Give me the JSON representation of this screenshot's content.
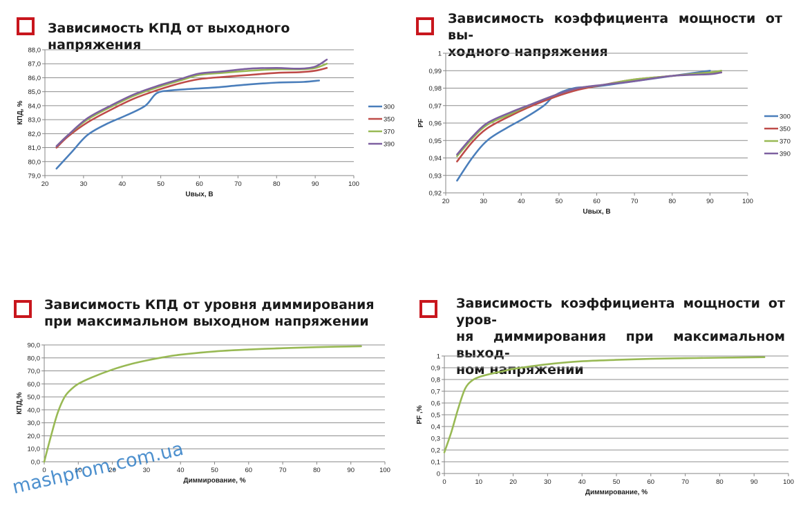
{
  "panels": [
    {
      "title": "Зависимость КПД от выходного напряжения",
      "chart_data": {
        "type": "line",
        "xlabel": "Uвых, В",
        "ylabel": "КПД, %",
        "xlim": [
          20,
          100
        ],
        "ylim": [
          79.0,
          88.0
        ],
        "x_ticks": [
          "20",
          "30",
          "40",
          "50",
          "60",
          "70",
          "80",
          "90",
          "100"
        ],
        "y_ticks": [
          "79,0",
          "80,0",
          "81,0",
          "82,0",
          "83,0",
          "84,0",
          "85,0",
          "86,0",
          "87,0",
          "88,0"
        ],
        "grid": true,
        "legend": "right",
        "series": [
          {
            "name": "300",
            "color": "#4a7ebb",
            "points": [
              [
                23,
                79.5
              ],
              [
                27,
                80.7
              ],
              [
                31,
                81.9
              ],
              [
                36,
                82.7
              ],
              [
                41,
                83.3
              ],
              [
                46,
                84.0
              ],
              [
                49,
                84.9
              ],
              [
                53,
                85.1
              ],
              [
                58,
                85.2
              ],
              [
                64,
                85.3
              ],
              [
                72,
                85.5
              ],
              [
                80,
                85.65
              ],
              [
                87,
                85.7
              ],
              [
                91,
                85.8
              ]
            ]
          },
          {
            "name": "350",
            "color": "#be4b48",
            "points": [
              [
                23,
                81.0
              ],
              [
                26,
                81.8
              ],
              [
                31,
                82.8
              ],
              [
                37,
                83.7
              ],
              [
                43,
                84.5
              ],
              [
                49,
                85.1
              ],
              [
                55,
                85.6
              ],
              [
                60,
                85.9
              ],
              [
                66,
                86.05
              ],
              [
                73,
                86.2
              ],
              [
                80,
                86.35
              ],
              [
                86,
                86.4
              ],
              [
                90,
                86.5
              ],
              [
                93,
                86.7
              ]
            ]
          },
          {
            "name": "370",
            "color": "#98b954",
            "points": [
              [
                23,
                81.1
              ],
              [
                26,
                81.9
              ],
              [
                31,
                83.0
              ],
              [
                37,
                83.9
              ],
              [
                43,
                84.7
              ],
              [
                49,
                85.3
              ],
              [
                55,
                85.8
              ],
              [
                60,
                86.2
              ],
              [
                66,
                86.35
              ],
              [
                73,
                86.5
              ],
              [
                80,
                86.6
              ],
              [
                86,
                86.6
              ],
              [
                90,
                86.7
              ],
              [
                93,
                87.0
              ]
            ]
          },
          {
            "name": "390",
            "color": "#7d60a0",
            "points": [
              [
                23,
                81.1
              ],
              [
                26,
                81.9
              ],
              [
                31,
                83.1
              ],
              [
                37,
                84.0
              ],
              [
                43,
                84.8
              ],
              [
                49,
                85.4
              ],
              [
                55,
                85.9
              ],
              [
                60,
                86.3
              ],
              [
                66,
                86.45
              ],
              [
                73,
                86.65
              ],
              [
                80,
                86.7
              ],
              [
                86,
                86.65
              ],
              [
                90,
                86.8
              ],
              [
                93,
                87.3
              ]
            ]
          }
        ]
      }
    },
    {
      "title": "Зависимость  коэффициента  мощности  от  вы-\nходного напряжения",
      "chart_data": {
        "type": "line",
        "xlabel": "Uвых, В",
        "ylabel": "PF",
        "xlim": [
          20,
          100
        ],
        "ylim": [
          0.92,
          1.0
        ],
        "x_ticks": [
          "20",
          "30",
          "40",
          "50",
          "60",
          "70",
          "80",
          "90",
          "100"
        ],
        "y_ticks": [
          "0,92",
          "0,93",
          "0,94",
          "0,95",
          "0,96",
          "0,97",
          "0,98",
          "0,99",
          "1"
        ],
        "grid": true,
        "legend": "right",
        "series": [
          {
            "name": "300",
            "color": "#4a7ebb",
            "points": [
              [
                23,
                0.927
              ],
              [
                27,
                0.94
              ],
              [
                31,
                0.95
              ],
              [
                36,
                0.957
              ],
              [
                41,
                0.963
              ],
              [
                46,
                0.97
              ],
              [
                49,
                0.976
              ],
              [
                54,
                0.98
              ],
              [
                60,
                0.981
              ],
              [
                70,
                0.984
              ],
              [
                80,
                0.987
              ],
              [
                90,
                0.99
              ]
            ]
          },
          {
            "name": "350",
            "color": "#be4b48",
            "points": [
              [
                23,
                0.938
              ],
              [
                27,
                0.949
              ],
              [
                31,
                0.957
              ],
              [
                37,
                0.964
              ],
              [
                43,
                0.97
              ],
              [
                49,
                0.975
              ],
              [
                55,
                0.979
              ],
              [
                62,
                0.982
              ],
              [
                70,
                0.985
              ],
              [
                80,
                0.987
              ],
              [
                90,
                0.989
              ],
              [
                93,
                0.989
              ]
            ]
          },
          {
            "name": "370",
            "color": "#98b954",
            "points": [
              [
                23,
                0.941
              ],
              [
                27,
                0.951
              ],
              [
                31,
                0.959
              ],
              [
                37,
                0.965
              ],
              [
                43,
                0.971
              ],
              [
                49,
                0.976
              ],
              [
                55,
                0.98
              ],
              [
                62,
                0.982
              ],
              [
                70,
                0.985
              ],
              [
                80,
                0.987
              ],
              [
                90,
                0.989
              ],
              [
                93,
                0.99
              ]
            ]
          },
          {
            "name": "390",
            "color": "#7d60a0",
            "points": [
              [
                23,
                0.942
              ],
              [
                27,
                0.952
              ],
              [
                31,
                0.96
              ],
              [
                37,
                0.966
              ],
              [
                43,
                0.971
              ],
              [
                49,
                0.976
              ],
              [
                55,
                0.98
              ],
              [
                62,
                0.982
              ],
              [
                70,
                0.984
              ],
              [
                80,
                0.987
              ],
              [
                90,
                0.988
              ],
              [
                93,
                0.989
              ]
            ]
          }
        ]
      }
    },
    {
      "title": "Зависимость КПД от уровня диммирования\nпри максимальном выходном напряжении",
      "chart_data": {
        "type": "line",
        "xlabel": "Диммирование, %",
        "ylabel": "КПД,%",
        "xlim": [
          0,
          100
        ],
        "ylim": [
          0,
          90
        ],
        "x_ticks": [
          "0",
          "10",
          "20",
          "30",
          "40",
          "50",
          "60",
          "70",
          "80",
          "90",
          "100"
        ],
        "y_ticks": [
          "0,0",
          "10,0",
          "20,0",
          "30,0",
          "40,0",
          "50,0",
          "60,0",
          "70,0",
          "80,0",
          "90,0"
        ],
        "grid": true,
        "series": [
          {
            "color": "#98b954",
            "points": [
              [
                0,
                0
              ],
              [
                2,
                20
              ],
              [
                4,
                38
              ],
              [
                6,
                50
              ],
              [
                8,
                56
              ],
              [
                10,
                60
              ],
              [
                14,
                65
              ],
              [
                20,
                71
              ],
              [
                25,
                75
              ],
              [
                30,
                78
              ],
              [
                35,
                80.5
              ],
              [
                40,
                82.5
              ],
              [
                50,
                85
              ],
              [
                60,
                86.5
              ],
              [
                70,
                87.5
              ],
              [
                80,
                88.3
              ],
              [
                93,
                89
              ]
            ]
          }
        ]
      }
    },
    {
      "title": "Зависимость коэффициента мощности от уров-\nня  диммирования  при  максимальном  выход-\nном напряжении",
      "chart_data": {
        "type": "line",
        "xlabel": "Диммирование, %",
        "ylabel": "PF ,%",
        "xlim": [
          0,
          100
        ],
        "ylim": [
          0,
          1
        ],
        "x_ticks": [
          "0",
          "10",
          "20",
          "30",
          "40",
          "50",
          "60",
          "70",
          "80",
          "90",
          "100"
        ],
        "y_ticks": [
          "0",
          "0,1",
          "0,2",
          "0,3",
          "0,4",
          "0,5",
          "0,6",
          "0,7",
          "0,8",
          "0,9",
          "1"
        ],
        "grid": true,
        "series": [
          {
            "color": "#98b954",
            "points": [
              [
                0,
                0.18
              ],
              [
                2,
                0.35
              ],
              [
                4,
                0.55
              ],
              [
                6,
                0.72
              ],
              [
                8,
                0.79
              ],
              [
                10,
                0.82
              ],
              [
                13,
                0.845
              ],
              [
                17,
                0.87
              ],
              [
                20,
                0.89
              ],
              [
                30,
                0.93
              ],
              [
                40,
                0.955
              ],
              [
                50,
                0.967
              ],
              [
                60,
                0.976
              ],
              [
                70,
                0.981
              ],
              [
                80,
                0.985
              ],
              [
                93,
                0.99
              ]
            ]
          }
        ]
      }
    }
  ],
  "watermark": "mashprom.com.ua"
}
